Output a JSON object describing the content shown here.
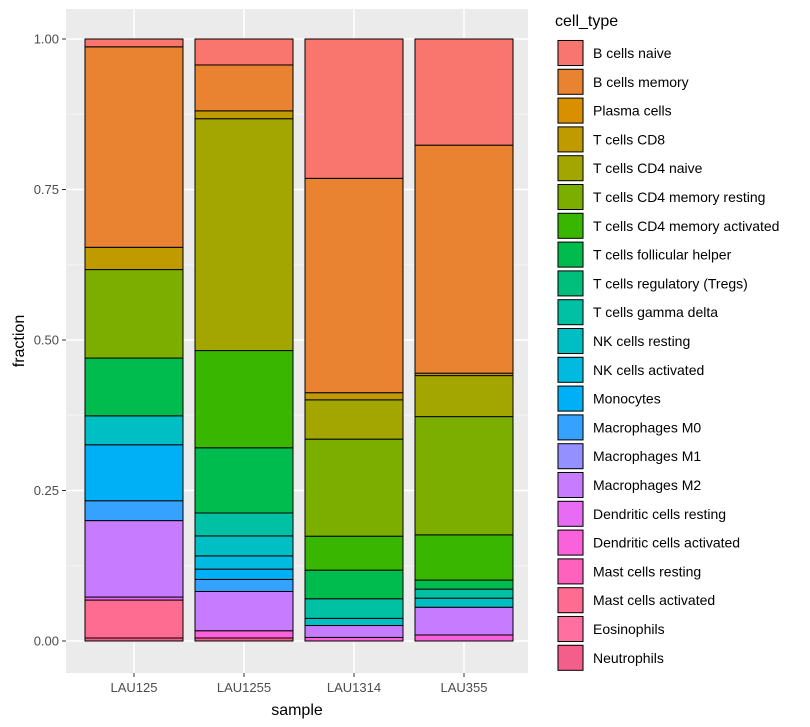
{
  "chart_data": {
    "type": "bar",
    "stacked": true,
    "title": "",
    "xlabel": "sample",
    "ylabel": "fraction",
    "ylim": [
      0,
      1
    ],
    "yticks": [
      "0.00",
      "0.25",
      "0.50",
      "0.75",
      "1.00"
    ],
    "ytick_values": [
      0,
      0.25,
      0.5,
      0.75,
      1
    ],
    "grid": true,
    "legend_title": "cell_type",
    "legend_position": "right",
    "categories": [
      "LAU125",
      "LAU1255",
      "LAU1314",
      "LAU355"
    ],
    "series": [
      {
        "name": "B cells naive",
        "color": "#F8766D",
        "values": [
          0.013,
          0.043,
          0.234,
          0.176
        ]
      },
      {
        "name": "B cells memory",
        "color": "#EA8331",
        "values": [
          0.333,
          0.076,
          0.36,
          0.378
        ]
      },
      {
        "name": "Plasma cells",
        "color": "#D89000",
        "values": [
          0.0,
          0.0,
          0.0,
          0.0
        ]
      },
      {
        "name": "T cells CD8",
        "color": "#C09B00",
        "values": [
          0.037,
          0.013,
          0.012,
          0.004
        ]
      },
      {
        "name": "T cells CD4 naive",
        "color": "#A3A500",
        "values": [
          0.0,
          0.384,
          0.066,
          0.068
        ]
      },
      {
        "name": "T cells CD4 memory resting",
        "color": "#7CAE00",
        "values": [
          0.147,
          0.0,
          0.163,
          0.196
        ]
      },
      {
        "name": "T cells CD4 memory activated",
        "color": "#39B600",
        "values": [
          0.0,
          0.161,
          0.057,
          0.075
        ]
      },
      {
        "name": "T cells follicular helper",
        "color": "#00BB4E",
        "values": [
          0.096,
          0.108,
          0.048,
          0.015
        ]
      },
      {
        "name": "T cells regulatory (Tregs)",
        "color": "#00BF7D",
        "values": [
          0.0,
          0.0,
          0.0,
          0.0
        ]
      },
      {
        "name": "T cells gamma delta",
        "color": "#00C1A3",
        "values": [
          0.0,
          0.038,
          0.033,
          0.015
        ]
      },
      {
        "name": "NK cells resting",
        "color": "#00BFC4",
        "values": [
          0.048,
          0.033,
          0.012,
          0.015
        ]
      },
      {
        "name": "NK cells activated",
        "color": "#00BAE0",
        "values": [
          0.0,
          0.022,
          0.0,
          0.0
        ]
      },
      {
        "name": "Monocytes",
        "color": "#00B0F6",
        "values": [
          0.093,
          0.017,
          0.0,
          0.0
        ]
      },
      {
        "name": "Macrophages M0",
        "color": "#35A2FF",
        "values": [
          0.033,
          0.02,
          0.0,
          0.0
        ]
      },
      {
        "name": "Macrophages M1",
        "color": "#9590FF",
        "values": [
          0.0,
          0.0,
          0.0,
          0.0
        ]
      },
      {
        "name": "Macrophages M2",
        "color": "#C77CFF",
        "values": [
          0.127,
          0.065,
          0.02,
          0.046
        ]
      },
      {
        "name": "Dendritic cells resting",
        "color": "#E76BF3",
        "values": [
          0.005,
          0.0,
          0.0,
          0.0
        ]
      },
      {
        "name": "Dendritic cells activated",
        "color": "#FA62DB",
        "values": [
          0.0,
          0.012,
          0.006,
          0.01
        ]
      },
      {
        "name": "Mast cells resting",
        "color": "#FF62BC",
        "values": [
          0.0,
          0.0,
          0.0,
          0.0
        ]
      },
      {
        "name": "Mast cells activated",
        "color": "#FF6C91",
        "values": [
          0.063,
          0.0,
          0.0,
          0.0
        ]
      },
      {
        "name": "Eosinophils",
        "color": "#FF70A0",
        "values": [
          0.0,
          0.0,
          0.0,
          0.0
        ]
      },
      {
        "name": "Neutrophils",
        "color": "#F35E8A",
        "values": [
          0.005,
          0.005,
          0.0,
          0.0
        ]
      }
    ]
  }
}
